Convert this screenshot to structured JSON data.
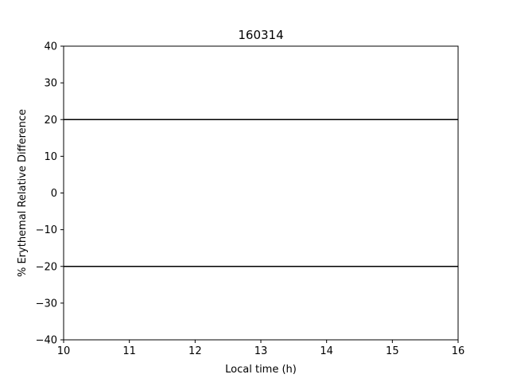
{
  "chart_data": {
    "type": "line",
    "title": "160314",
    "xlabel": "Local time (h)",
    "ylabel": "% Erythemal Relative Difference",
    "xlim": [
      10,
      16
    ],
    "ylim": [
      -40,
      40
    ],
    "xticks": [
      10,
      11,
      12,
      13,
      14,
      15,
      16
    ],
    "yticks": [
      -40,
      -30,
      -20,
      -10,
      0,
      10,
      20,
      30,
      40
    ],
    "xtick_labels": [
      "10",
      "11",
      "12",
      "13",
      "14",
      "15",
      "16"
    ],
    "ytick_labels": [
      "−40",
      "−30",
      "−20",
      "−10",
      "0",
      "10",
      "20",
      "30",
      "40"
    ],
    "grid": false,
    "reference_lines": [
      {
        "y": 20,
        "color": "#000000"
      },
      {
        "y": -20,
        "color": "#000000"
      }
    ],
    "series": []
  }
}
